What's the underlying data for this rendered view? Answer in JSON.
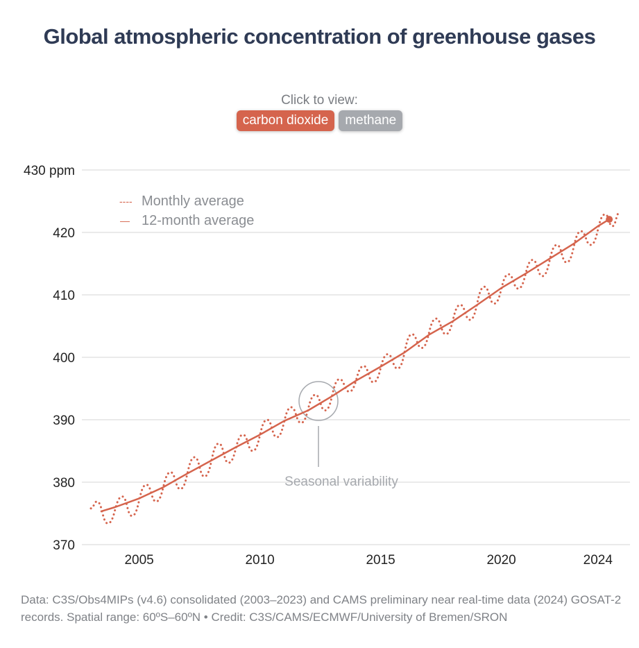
{
  "header": {
    "title": "Global atmospheric concentration of greenhouse gases",
    "click_label": "Click to view:",
    "buttons": [
      {
        "label": "carbon dioxide",
        "active": true
      },
      {
        "label": "methane",
        "active": false
      }
    ]
  },
  "colors": {
    "series": "#d5644d",
    "title": "#2f3b55",
    "inactive": "#a6a9ae"
  },
  "chart_data": {
    "type": "line",
    "title": "Global atmospheric concentration of greenhouse gases",
    "ylabel": "ppm",
    "ylim": [
      370,
      430
    ],
    "xlim": [
      2003,
      2025.3
    ],
    "y_ticks": [
      {
        "v": 430,
        "label": "430 ppm"
      },
      {
        "v": 420,
        "label": "420"
      },
      {
        "v": 410,
        "label": "410"
      },
      {
        "v": 400,
        "label": "400"
      },
      {
        "v": 390,
        "label": "390"
      },
      {
        "v": 380,
        "label": "380"
      },
      {
        "v": 370,
        "label": "370"
      }
    ],
    "x_ticks": [
      {
        "v": 2005,
        "label": "2005"
      },
      {
        "v": 2010,
        "label": "2010"
      },
      {
        "v": 2015,
        "label": "2015"
      },
      {
        "v": 2020,
        "label": "2020"
      },
      {
        "v": 2024,
        "label": "2024"
      }
    ],
    "legend": [
      {
        "name": "Monthly average",
        "style": "dotted",
        "symbol": "----"
      },
      {
        "name": "12-month average",
        "style": "solid",
        "symbol": "—"
      }
    ],
    "series": [
      {
        "name": "Monthly average",
        "x": [
          2003.0,
          2003.25,
          2003.7,
          2004.3,
          2004.7,
          2005.3,
          2005.7,
          2006.3,
          2006.7,
          2007.3,
          2007.7,
          2008.3,
          2008.7,
          2009.3,
          2009.7,
          2010.3,
          2010.7,
          2011.3,
          2011.7,
          2012.3,
          2012.7,
          2013.3,
          2013.7,
          2014.3,
          2014.7,
          2015.3,
          2015.7,
          2016.3,
          2016.7,
          2017.3,
          2017.7,
          2018.3,
          2018.7,
          2019.3,
          2019.7,
          2020.3,
          2020.7,
          2021.3,
          2021.7,
          2022.3,
          2022.7,
          2023.3,
          2023.7,
          2024.3,
          2024.6,
          2024.9
        ],
        "y": [
          375.8,
          376.9,
          373.4,
          377.7,
          374.6,
          379.6,
          376.9,
          381.6,
          378.9,
          384.0,
          380.9,
          386.2,
          383.1,
          387.6,
          385.0,
          390.0,
          387.2,
          392.0,
          389.5,
          394.0,
          391.5,
          396.5,
          394.5,
          398.6,
          396.0,
          400.5,
          398.2,
          403.7,
          401.5,
          406.2,
          403.7,
          408.4,
          406.0,
          411.3,
          408.6,
          413.3,
          411.0,
          415.6,
          413.0,
          418.0,
          415.2,
          420.2,
          418.0,
          422.9,
          421.0,
          423.2
        ]
      },
      {
        "name": "12-month average",
        "x": [
          2003.4,
          2004,
          2005,
          2006,
          2007,
          2008,
          2009,
          2010,
          2011,
          2012,
          2013,
          2014,
          2015,
          2016,
          2017,
          2018,
          2019,
          2020,
          2021,
          2022,
          2023,
          2024,
          2024.47
        ],
        "y": [
          375.3,
          376.0,
          377.4,
          379.2,
          381.4,
          383.5,
          385.6,
          387.6,
          389.8,
          391.5,
          393.8,
          396.3,
          398.5,
          400.8,
          403.6,
          405.8,
          408.4,
          411.1,
          413.4,
          415.8,
          418.2,
          421.0,
          422.1
        ]
      }
    ],
    "annotations": [
      {
        "text": "Seasonal variability",
        "x": 2012.5,
        "y": 393
      }
    ],
    "grid": true
  },
  "footer": {
    "text": "Data: C3S/Obs4MIPs (v4.6) consolidated (2003–2023) and CAMS preliminary near real-time data (2024) GOSAT-2 records. Spatial range: 60ºS–60ºN • Credit: C3S/CAMS/ECMWF/University of Bremen/SRON"
  }
}
